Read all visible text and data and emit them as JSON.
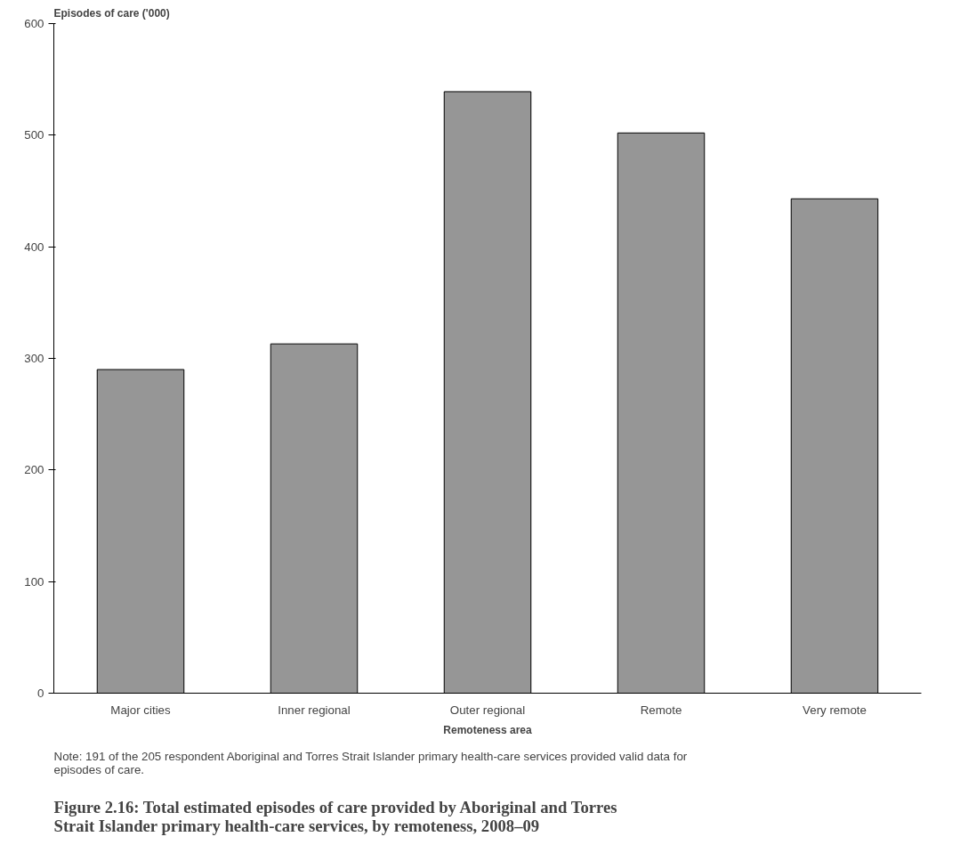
{
  "chart_data": {
    "type": "bar",
    "title": "Figure 2.16: Total estimated episodes of care provided by Aboriginal and Torres Strait Islander primary health-care services, by remoteness, 2008–09",
    "ylabel": "Episodes of care ('000)",
    "xlabel": "Remoteness area",
    "categories": [
      "Major cities",
      "Inner regional",
      "Outer regional",
      "Remote",
      "Very remote"
    ],
    "values": [
      290,
      313,
      539,
      502,
      443
    ],
    "color": "#969696",
    "ylim": [
      0,
      600
    ],
    "yticks": [
      0,
      100,
      200,
      300,
      400,
      500,
      600
    ],
    "grid": false,
    "annotations": [
      "Note: 191 of the 205 respondent Aboriginal and Torres Strait Islander primary health-care services provided valid data for episodes of care."
    ]
  }
}
